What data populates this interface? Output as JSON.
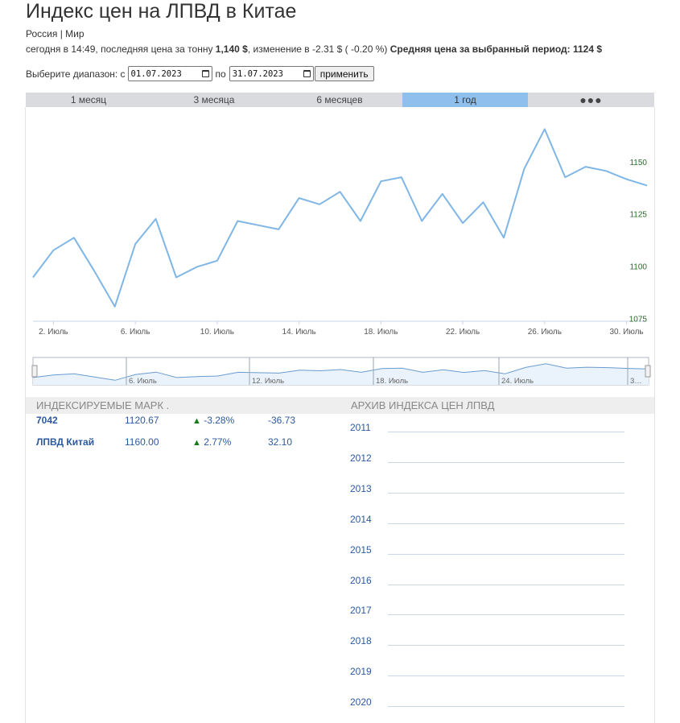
{
  "header": {
    "title": "Индекс цен на ЛПВД в Китае",
    "crumb_russia": "Россия",
    "crumb_sep": "|",
    "crumb_world": "Мир",
    "info_prefix": "сегодня в 14:49, последняя цена за тонну",
    "last_price": "1,140 $",
    "change_text": ", изменение в -2.31 $ ( -0.20 %)",
    "avg_label": "Средняя цена за выбранный период:",
    "avg_value": "1124 $"
  },
  "range": {
    "label": "Выберите диапазон: с",
    "from": "01.07.2023",
    "to_label": "по",
    "to": "31.07.2023",
    "apply": "применить"
  },
  "tabs": [
    {
      "label": "1 месяц",
      "active": false
    },
    {
      "label": "3 месяца",
      "active": false
    },
    {
      "label": "6 месяцев",
      "active": false
    },
    {
      "label": "1 год",
      "active": true
    },
    {
      "label": "●●●",
      "active": false
    }
  ],
  "colors": {
    "line": "#7fb6e6",
    "active_tab": "#8fc0ed",
    "y_tick": "#2a6a2a",
    "link": "#2b5aa0",
    "up": "#1a7a1a"
  },
  "chart_data": {
    "type": "line",
    "x_label_positions_days": [
      2,
      6,
      10,
      14,
      18,
      22,
      26,
      30
    ],
    "x_tick_labels": [
      "2. Июль",
      "6. Июль",
      "10. Июль",
      "14. Июль",
      "18. Июль",
      "22. Июль",
      "26. Июль",
      "30. Июль"
    ],
    "y_ticks": [
      1075,
      1100,
      1125,
      1150
    ],
    "y_tick_labels": [
      "1075",
      "1100",
      "1125",
      "1150"
    ],
    "ylim": [
      1074,
      1165
    ],
    "xlim": [
      1,
      31
    ],
    "series": [
      {
        "x": [
          1,
          2,
          3,
          4,
          5,
          6,
          7,
          8,
          9,
          10,
          11,
          12,
          13,
          14,
          15,
          16,
          17,
          18,
          19,
          20,
          21,
          22,
          23,
          24,
          25,
          26,
          27,
          28,
          29,
          30,
          31
        ],
        "values": [
          1095,
          1108,
          1114,
          1098,
          1081,
          1111,
          1123,
          1095,
          1100,
          1103,
          1122,
          1120,
          1118,
          1133,
          1130,
          1136,
          1122,
          1141,
          1143,
          1122,
          1135,
          1121,
          1131,
          1114,
          1147,
          1166,
          1143,
          1148,
          1146,
          1142,
          1139
        ]
      }
    ],
    "navigator_labels": [
      "6. Июль",
      "12. Июль",
      "18. Июль",
      "24. Июль",
      "3…"
    ]
  },
  "indices": {
    "header": "ИНДЕКСИРУЕМЫЕ МАРК .",
    "rows": [
      {
        "name": "7042",
        "price": "1120.67",
        "pct": "-3.28%",
        "abs": "-36.73"
      },
      {
        "name": "ЛПВД Китай",
        "price": "1160.00",
        "pct": "2.77%",
        "abs": "32.10"
      }
    ],
    "up_symbol": "▲"
  },
  "archive": {
    "header": "АРХИВ ИНДЕКСА ЦЕН ЛПВД",
    "years": [
      "2011",
      "2012",
      "2013",
      "2014",
      "2015",
      "2016",
      "2017",
      "2018",
      "2019",
      "2020"
    ]
  }
}
